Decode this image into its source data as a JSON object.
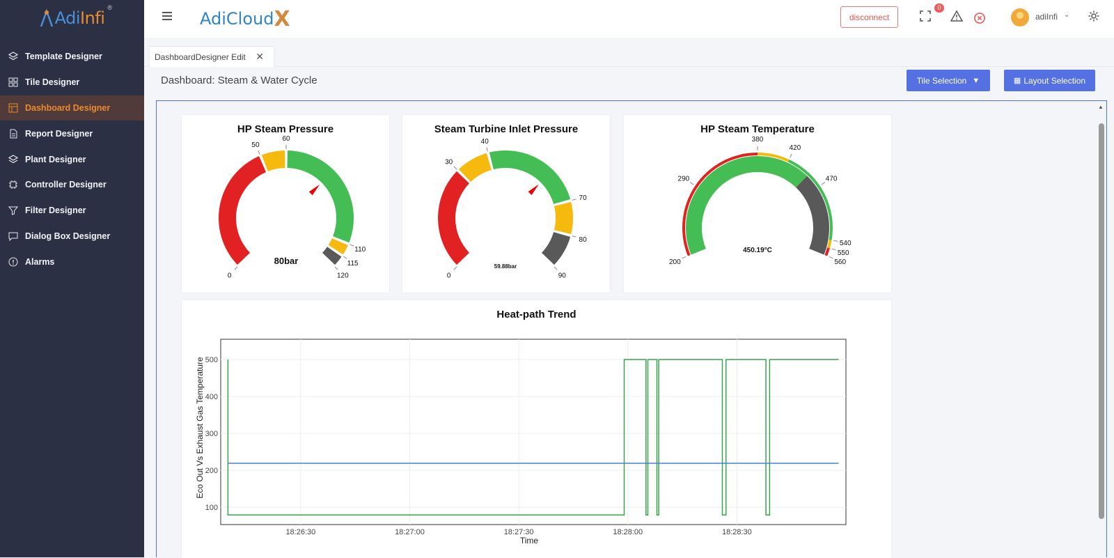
{
  "logo": {
    "prefix": "Adi",
    "suffix": "Infi",
    "reg": "®"
  },
  "sidebar": {
    "items": [
      {
        "label": "Template Designer",
        "icon": "layers-icon"
      },
      {
        "label": "Tile Designer",
        "icon": "grid-icon"
      },
      {
        "label": "Dashboard Designer",
        "icon": "dashboard-icon",
        "active": true
      },
      {
        "label": "Report Designer",
        "icon": "document-icon"
      },
      {
        "label": "Plant Designer",
        "icon": "layers-icon"
      },
      {
        "label": "Controller Designer",
        "icon": "chip-icon"
      },
      {
        "label": "Filter Designer",
        "icon": "filter-icon"
      },
      {
        "label": "Dialog Box Designer",
        "icon": "chat-icon"
      },
      {
        "label": "Alarms",
        "icon": "alert-circle-icon"
      }
    ]
  },
  "header": {
    "brand": "AdiCloud",
    "brand_x": "X",
    "disconnect": "disconnect",
    "alarm_count": "0",
    "user": "adiInfi"
  },
  "tabs": [
    {
      "label": "DashboardDesigner Edit"
    }
  ],
  "dashboard": {
    "title": "Dashboard: Steam & Water Cycle",
    "tile_selection": "Tile Selection",
    "layout_selection": "Layout Selection"
  },
  "gauges": [
    {
      "title": "HP Steam Pressure",
      "value_text": "80bar",
      "value": 80,
      "min": 0,
      "max": 120,
      "ticks": [
        "0",
        "50",
        "60",
        "110",
        "115",
        "120"
      ],
      "bands": [
        {
          "from": 0,
          "to": 50,
          "color": "#e22222"
        },
        {
          "from": 50,
          "to": 60,
          "color": "#f6b90d"
        },
        {
          "from": 60,
          "to": 110,
          "color": "#45bd55"
        },
        {
          "from": 110,
          "to": 115,
          "color": "#f6b90d"
        },
        {
          "from": 115,
          "to": 120,
          "color": "#595959"
        }
      ]
    },
    {
      "title": "Steam Turbine Inlet Pressure",
      "value_text": "59.88bar",
      "value": 59.88,
      "min": 0,
      "max": 90,
      "ticks": [
        "0",
        "30",
        "40",
        "70",
        "80",
        "90"
      ],
      "bands": [
        {
          "from": 0,
          "to": 30,
          "color": "#e22222"
        },
        {
          "from": 30,
          "to": 40,
          "color": "#f6b90d"
        },
        {
          "from": 40,
          "to": 70,
          "color": "#45bd55"
        },
        {
          "from": 70,
          "to": 80,
          "color": "#f6b90d"
        },
        {
          "from": 80,
          "to": 90,
          "color": "#595959"
        }
      ]
    },
    {
      "title": "HP Steam Temperature",
      "value_text": "450.19°C",
      "value": 450.19,
      "min": 200,
      "max": 560,
      "ticks": [
        "200",
        "290",
        "380",
        "420",
        "470",
        "540",
        "550",
        "560"
      ],
      "outer_bands": [
        {
          "from": 200,
          "to": 380,
          "color": "#e22222"
        },
        {
          "from": 380,
          "to": 420,
          "color": "#f6b90d"
        },
        {
          "from": 420,
          "to": 540,
          "color": "#45bd55"
        },
        {
          "from": 540,
          "to": 550,
          "color": "#f6b90d"
        },
        {
          "from": 550,
          "to": 560,
          "color": "#e22222"
        }
      ],
      "inner_bands": [
        {
          "from": 200,
          "to": 450.19,
          "color": "#45bd55"
        },
        {
          "from": 450.19,
          "to": 560,
          "color": "#595959"
        }
      ]
    }
  ],
  "chart_data": {
    "type": "line",
    "title": "Heat-path Trend",
    "xlabel": "Time",
    "ylabel": "Eco Out Vs Exhaust Gas Temperature",
    "x_ticks": [
      "18:26:30",
      "18:27:00",
      "18:27:30",
      "18:28:00",
      "18:28:30"
    ],
    "x_tick_seconds": [
      30,
      60,
      90,
      120,
      150
    ],
    "xlim_seconds": [
      8,
      180
    ],
    "y_ticks": [
      100,
      200,
      300,
      400,
      500
    ],
    "ylim": [
      53,
      555
    ],
    "grid": true,
    "series": [
      {
        "color": "#3aa14f",
        "points": [
          [
            10,
            500
          ],
          [
            10,
            79
          ],
          [
            119,
            79
          ],
          [
            119,
            500
          ],
          [
            125,
            500
          ],
          [
            125,
            79
          ],
          [
            125.5,
            79
          ],
          [
            125.5,
            500
          ],
          [
            128,
            500
          ],
          [
            128,
            79
          ],
          [
            128.5,
            79
          ],
          [
            128.5,
            500
          ],
          [
            146,
            500
          ],
          [
            146,
            79
          ],
          [
            147,
            79
          ],
          [
            147,
            500
          ],
          [
            158,
            500
          ],
          [
            158,
            79
          ],
          [
            159,
            79
          ],
          [
            159,
            500
          ],
          [
            178,
            500
          ]
        ]
      },
      {
        "color": "#4a7fd4",
        "points": [
          [
            10,
            219
          ],
          [
            178,
            219
          ]
        ]
      }
    ]
  }
}
